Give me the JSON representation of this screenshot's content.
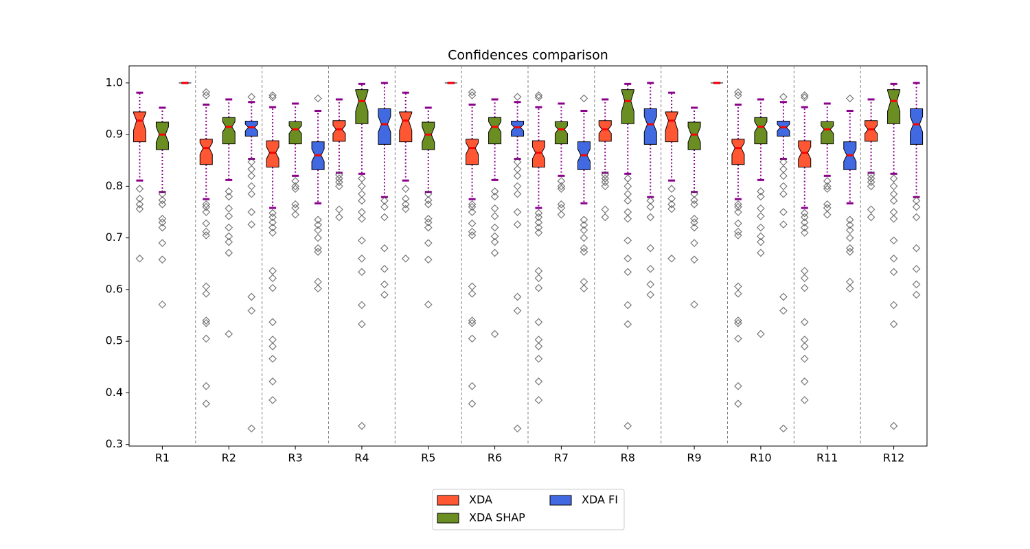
{
  "chart_data": {
    "type": "boxplot",
    "title": "Confidences comparison",
    "categories": [
      "R1",
      "R2",
      "R3",
      "R4",
      "R5",
      "R6",
      "R7",
      "R8",
      "R9",
      "R10",
      "R11",
      "R12"
    ],
    "ylim": [
      0.297,
      1.033
    ],
    "yticks": [
      0.3,
      0.4,
      0.5,
      0.6,
      0.7,
      0.8,
      0.9,
      {
        "value": 1,
        "label": "1.0"
      }
    ],
    "legend": "lower center",
    "series": [
      {
        "name": "XDA",
        "color": "#ff5733",
        "boxes": [
          {
            "whislo": 0.811,
            "q1": 0.886,
            "med": 0.927,
            "q3": 0.944,
            "whishi": 0.981,
            "notch": [
              0.908,
              0.942
            ],
            "fliers": [
              0.795,
              0.776,
              0.765,
              0.756,
              0.66
            ]
          },
          {
            "whislo": 0.775,
            "q1": 0.842,
            "med": 0.874,
            "q3": 0.891,
            "whishi": 0.958,
            "notch": [
              0.862,
              0.884
            ],
            "fliers": [
              0.982,
              0.976,
              0.765,
              0.76,
              0.75,
              0.728,
              0.712,
              0.705,
              0.606,
              0.592,
              0.54,
              0.535,
              0.505,
              0.413,
              0.379
            ]
          },
          {
            "whislo": 0.758,
            "q1": 0.837,
            "med": 0.865,
            "q3": 0.888,
            "whishi": 0.953,
            "notch": [
              0.853,
              0.876
            ],
            "fliers": [
              0.976,
              0.972,
              0.748,
              0.74,
              0.73,
              0.72,
              0.71,
              0.636,
              0.622,
              0.603,
              0.537,
              0.503,
              0.49,
              0.466,
              0.422,
              0.386
            ]
          },
          {
            "whislo": 0.826,
            "q1": 0.887,
            "med": 0.91,
            "q3": 0.927,
            "whishi": 0.968,
            "notch": [
              0.902,
              0.918
            ],
            "fliers": [
              0.822,
              0.815,
              0.808,
              0.8,
              0.755,
              0.74
            ]
          },
          {
            "whislo": 0.811,
            "q1": 0.886,
            "med": 0.927,
            "q3": 0.944,
            "whishi": 0.981,
            "notch": [
              0.908,
              0.942
            ],
            "fliers": [
              0.795,
              0.776,
              0.765,
              0.756,
              0.66
            ]
          },
          {
            "whislo": 0.775,
            "q1": 0.842,
            "med": 0.874,
            "q3": 0.891,
            "whishi": 0.958,
            "notch": [
              0.862,
              0.884
            ],
            "fliers": [
              0.982,
              0.976,
              0.765,
              0.76,
              0.75,
              0.728,
              0.712,
              0.705,
              0.606,
              0.592,
              0.54,
              0.535,
              0.505,
              0.413,
              0.379
            ]
          },
          {
            "whislo": 0.758,
            "q1": 0.837,
            "med": 0.865,
            "q3": 0.888,
            "whishi": 0.953,
            "notch": [
              0.853,
              0.876
            ],
            "fliers": [
              0.976,
              0.972,
              0.748,
              0.74,
              0.73,
              0.72,
              0.71,
              0.636,
              0.622,
              0.603,
              0.537,
              0.503,
              0.49,
              0.466,
              0.422,
              0.386
            ]
          },
          {
            "whislo": 0.826,
            "q1": 0.887,
            "med": 0.91,
            "q3": 0.927,
            "whishi": 0.968,
            "notch": [
              0.902,
              0.918
            ],
            "fliers": [
              0.822,
              0.815,
              0.808,
              0.8,
              0.755,
              0.74
            ]
          },
          {
            "whislo": 0.811,
            "q1": 0.886,
            "med": 0.927,
            "q3": 0.944,
            "whishi": 0.981,
            "notch": [
              0.908,
              0.942
            ],
            "fliers": [
              0.795,
              0.776,
              0.765,
              0.756,
              0.66
            ]
          },
          {
            "whislo": 0.775,
            "q1": 0.842,
            "med": 0.874,
            "q3": 0.891,
            "whishi": 0.958,
            "notch": [
              0.862,
              0.884
            ],
            "fliers": [
              0.982,
              0.976,
              0.765,
              0.76,
              0.75,
              0.728,
              0.712,
              0.705,
              0.606,
              0.592,
              0.54,
              0.535,
              0.505,
              0.413,
              0.379
            ]
          },
          {
            "whislo": 0.758,
            "q1": 0.837,
            "med": 0.865,
            "q3": 0.888,
            "whishi": 0.953,
            "notch": [
              0.853,
              0.876
            ],
            "fliers": [
              0.976,
              0.972,
              0.748,
              0.74,
              0.73,
              0.72,
              0.71,
              0.636,
              0.622,
              0.603,
              0.537,
              0.503,
              0.49,
              0.466,
              0.422,
              0.386
            ]
          },
          {
            "whislo": 0.826,
            "q1": 0.887,
            "med": 0.91,
            "q3": 0.927,
            "whishi": 0.968,
            "notch": [
              0.902,
              0.918
            ],
            "fliers": [
              0.822,
              0.815,
              0.808,
              0.8,
              0.755,
              0.74
            ]
          }
        ]
      },
      {
        "name": "XDA SHAP",
        "color": "#6b8e23",
        "boxes": [
          {
            "whislo": 0.789,
            "q1": 0.871,
            "med": 0.9,
            "q3": 0.924,
            "whishi": 0.952,
            "notch": [
              0.885,
              0.915
            ],
            "fliers": [
              0.785,
              0.773,
              0.765,
              0.737,
              0.73,
              0.72,
              0.69,
              0.658,
              0.571
            ]
          },
          {
            "whislo": 0.812,
            "q1": 0.882,
            "med": 0.915,
            "q3": 0.933,
            "whishi": 0.968,
            "notch": [
              0.905,
              0.925
            ],
            "fliers": [
              0.79,
              0.78,
              0.757,
              0.742,
              0.72,
              0.703,
              0.692,
              0.671,
              0.514
            ]
          },
          {
            "whislo": 0.82,
            "q1": 0.882,
            "med": 0.91,
            "q3": 0.925,
            "whishi": 0.96,
            "notch": [
              0.902,
              0.917
            ],
            "fliers": [
              0.81,
              0.8,
              0.795,
              0.765,
              0.758,
              0.745
            ]
          },
          {
            "whislo": 0.824,
            "q1": 0.921,
            "med": 0.965,
            "q3": 0.987,
            "whishi": 0.998,
            "notch": [
              0.945,
              0.985
            ],
            "fliers": [
              0.815,
              0.8,
              0.785,
              0.772,
              0.75,
              0.737,
              0.695,
              0.66,
              0.634,
              0.57,
              0.533,
              0.336
            ]
          },
          {
            "whislo": 0.789,
            "q1": 0.871,
            "med": 0.9,
            "q3": 0.924,
            "whishi": 0.952,
            "notch": [
              0.885,
              0.915
            ],
            "fliers": [
              0.785,
              0.773,
              0.765,
              0.737,
              0.73,
              0.72,
              0.69,
              0.658,
              0.571
            ]
          },
          {
            "whislo": 0.812,
            "q1": 0.882,
            "med": 0.915,
            "q3": 0.933,
            "whishi": 0.968,
            "notch": [
              0.905,
              0.925
            ],
            "fliers": [
              0.79,
              0.78,
              0.757,
              0.742,
              0.72,
              0.703,
              0.692,
              0.671,
              0.514
            ]
          },
          {
            "whislo": 0.82,
            "q1": 0.882,
            "med": 0.91,
            "q3": 0.925,
            "whishi": 0.96,
            "notch": [
              0.902,
              0.917
            ],
            "fliers": [
              0.81,
              0.8,
              0.795,
              0.765,
              0.758,
              0.745
            ]
          },
          {
            "whislo": 0.824,
            "q1": 0.921,
            "med": 0.965,
            "q3": 0.987,
            "whishi": 0.998,
            "notch": [
              0.945,
              0.985
            ],
            "fliers": [
              0.815,
              0.8,
              0.785,
              0.772,
              0.75,
              0.737,
              0.695,
              0.66,
              0.634,
              0.57,
              0.533,
              0.336
            ]
          },
          {
            "whislo": 0.789,
            "q1": 0.871,
            "med": 0.9,
            "q3": 0.924,
            "whishi": 0.952,
            "notch": [
              0.885,
              0.915
            ],
            "fliers": [
              0.785,
              0.773,
              0.765,
              0.737,
              0.73,
              0.72,
              0.69,
              0.658,
              0.571
            ]
          },
          {
            "whislo": 0.812,
            "q1": 0.882,
            "med": 0.915,
            "q3": 0.933,
            "whishi": 0.968,
            "notch": [
              0.905,
              0.925
            ],
            "fliers": [
              0.79,
              0.78,
              0.757,
              0.742,
              0.72,
              0.703,
              0.692,
              0.671,
              0.514
            ]
          },
          {
            "whislo": 0.82,
            "q1": 0.882,
            "med": 0.91,
            "q3": 0.925,
            "whishi": 0.96,
            "notch": [
              0.902,
              0.917
            ],
            "fliers": [
              0.81,
              0.8,
              0.795,
              0.765,
              0.758,
              0.745
            ]
          },
          {
            "whislo": 0.824,
            "q1": 0.921,
            "med": 0.965,
            "q3": 0.987,
            "whishi": 0.998,
            "notch": [
              0.945,
              0.985
            ],
            "fliers": [
              0.815,
              0.8,
              0.785,
              0.772,
              0.75,
              0.737,
              0.695,
              0.66,
              0.634,
              0.57,
              0.533,
              0.336
            ]
          }
        ]
      },
      {
        "name": "XDA FI",
        "color": "#4169e1",
        "boxes": [
          {
            "whislo": 1,
            "q1": 1,
            "med": 1,
            "q3": 1,
            "whishi": 1,
            "notch": [
              1,
              1
            ],
            "fliers": []
          },
          {
            "whislo": 0.853,
            "q1": 0.897,
            "med": 0.914,
            "q3": 0.926,
            "whishi": 0.963,
            "notch": [
              0.907,
              0.92
            ],
            "fliers": [
              0.973,
              0.847,
              0.833,
              0.82,
              0.8,
              0.785,
              0.75,
              0.726,
              0.586,
              0.559,
              0.331
            ]
          },
          {
            "whislo": 0.767,
            "q1": 0.832,
            "med": 0.86,
            "q3": 0.886,
            "whishi": 0.946,
            "notch": [
              0.848,
              0.872
            ],
            "fliers": [
              0.97,
              0.735,
              0.725,
              0.715,
              0.7,
              0.68,
              0.673,
              0.615,
              0.602
            ]
          },
          {
            "whislo": 0.779,
            "q1": 0.881,
            "med": 0.92,
            "q3": 0.95,
            "whishi": 1,
            "notch": [
              0.905,
              0.935
            ],
            "fliers": [
              0.772,
              0.76,
              0.74,
              0.68,
              0.64,
              0.61,
              0.59
            ]
          },
          {
            "whislo": 1,
            "q1": 1,
            "med": 1,
            "q3": 1,
            "whishi": 1,
            "notch": [
              1,
              1
            ],
            "fliers": []
          },
          {
            "whislo": 0.853,
            "q1": 0.897,
            "med": 0.914,
            "q3": 0.926,
            "whishi": 0.963,
            "notch": [
              0.907,
              0.92
            ],
            "fliers": [
              0.973,
              0.847,
              0.833,
              0.82,
              0.8,
              0.785,
              0.75,
              0.726,
              0.586,
              0.559,
              0.331
            ]
          },
          {
            "whislo": 0.767,
            "q1": 0.832,
            "med": 0.86,
            "q3": 0.886,
            "whishi": 0.946,
            "notch": [
              0.848,
              0.872
            ],
            "fliers": [
              0.97,
              0.735,
              0.725,
              0.715,
              0.7,
              0.68,
              0.673,
              0.615,
              0.602
            ]
          },
          {
            "whislo": 0.779,
            "q1": 0.881,
            "med": 0.92,
            "q3": 0.95,
            "whishi": 1,
            "notch": [
              0.905,
              0.935
            ],
            "fliers": [
              0.772,
              0.76,
              0.74,
              0.68,
              0.64,
              0.61,
              0.59
            ]
          },
          {
            "whislo": 1,
            "q1": 1,
            "med": 1,
            "q3": 1,
            "whishi": 1,
            "notch": [
              1,
              1
            ],
            "fliers": []
          },
          {
            "whislo": 0.853,
            "q1": 0.897,
            "med": 0.914,
            "q3": 0.926,
            "whishi": 0.963,
            "notch": [
              0.907,
              0.92
            ],
            "fliers": [
              0.973,
              0.847,
              0.833,
              0.82,
              0.8,
              0.785,
              0.75,
              0.726,
              0.586,
              0.559,
              0.331
            ]
          },
          {
            "whislo": 0.767,
            "q1": 0.832,
            "med": 0.86,
            "q3": 0.886,
            "whishi": 0.946,
            "notch": [
              0.848,
              0.872
            ],
            "fliers": [
              0.97,
              0.735,
              0.725,
              0.715,
              0.7,
              0.68,
              0.673,
              0.615,
              0.602
            ]
          },
          {
            "whislo": 0.779,
            "q1": 0.881,
            "med": 0.92,
            "q3": 0.95,
            "whishi": 1,
            "notch": [
              0.905,
              0.935
            ],
            "fliers": [
              0.772,
              0.76,
              0.74,
              0.68,
              0.64,
              0.61,
              0.59
            ]
          }
        ]
      }
    ]
  }
}
